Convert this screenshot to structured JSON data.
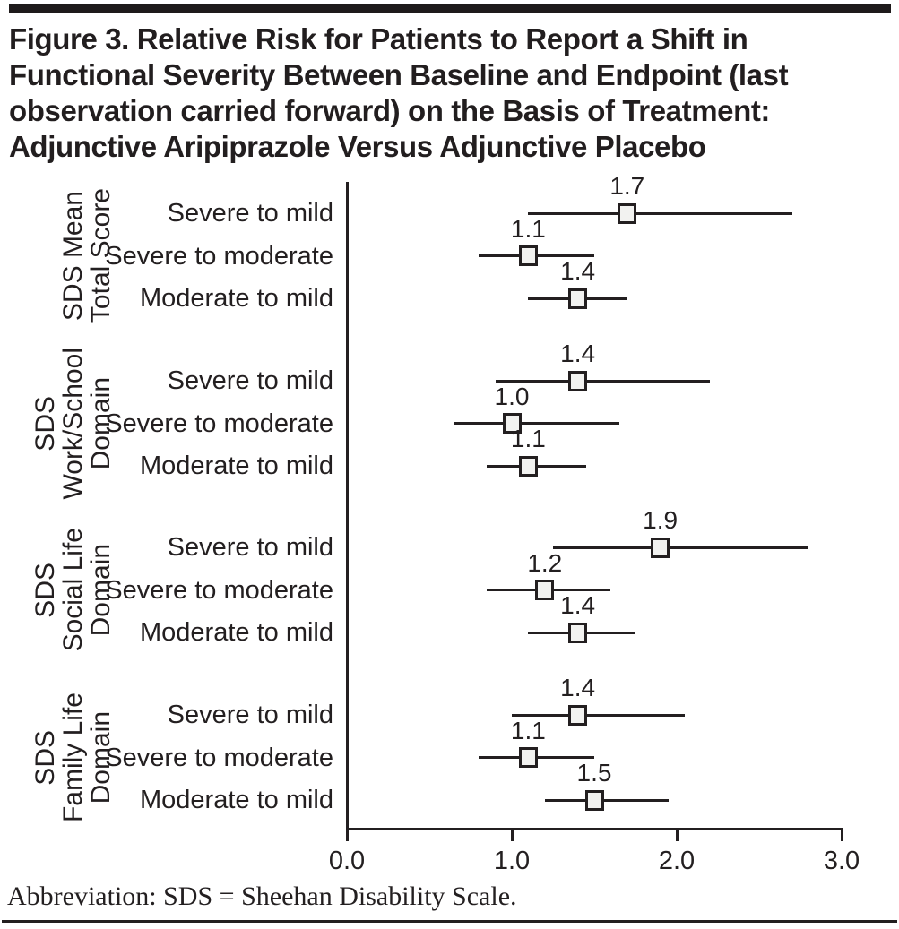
{
  "figure": {
    "title_lines": [
      "Figure 3. Relative Risk for Patients to Report a Shift in",
      "Functional Severity Between Baseline and Endpoint (last",
      "observation carried forward) on the Basis of Treatment:",
      "Adjunctive Aripiprazole Versus Adjunctive Placebo"
    ],
    "footnote": "Abbreviation: SDS = Sheehan Disability Scale."
  },
  "chart_data": {
    "type": "scatter",
    "subtype": "forest-plot",
    "xlabel": "",
    "ylabel": "",
    "xlim": [
      0.0,
      3.0
    ],
    "x_ticks": [
      "0.0",
      "1.0",
      "2.0",
      "3.0"
    ],
    "x_tick_values": [
      0.0,
      1.0,
      2.0,
      3.0
    ],
    "grid": false,
    "legend": false,
    "marker": "open-square",
    "groups": [
      {
        "label_lines": [
          "SDS Mean",
          "Total Score"
        ],
        "rows": [
          {
            "category": "Severe to mild",
            "rr": 1.7,
            "ci_low": 1.1,
            "ci_high": 2.7
          },
          {
            "category": "Severe to moderate",
            "rr": 1.1,
            "ci_low": 0.8,
            "ci_high": 1.5
          },
          {
            "category": "Moderate to mild",
            "rr": 1.4,
            "ci_low": 1.1,
            "ci_high": 1.7
          }
        ]
      },
      {
        "label_lines": [
          "SDS",
          "Work/School",
          "Domain"
        ],
        "rows": [
          {
            "category": "Severe to mild",
            "rr": 1.4,
            "ci_low": 0.9,
            "ci_high": 2.2
          },
          {
            "category": "Severe to moderate",
            "rr": 1.0,
            "ci_low": 0.65,
            "ci_high": 1.65
          },
          {
            "category": "Moderate to mild",
            "rr": 1.1,
            "ci_low": 0.85,
            "ci_high": 1.45
          }
        ]
      },
      {
        "label_lines": [
          "SDS",
          "Social Life",
          "Domain"
        ],
        "rows": [
          {
            "category": "Severe to mild",
            "rr": 1.9,
            "ci_low": 1.25,
            "ci_high": 2.8
          },
          {
            "category": "Severe to moderate",
            "rr": 1.2,
            "ci_low": 0.85,
            "ci_high": 1.6
          },
          {
            "category": "Moderate to mild",
            "rr": 1.4,
            "ci_low": 1.1,
            "ci_high": 1.75
          }
        ]
      },
      {
        "label_lines": [
          "SDS",
          "Family Life",
          "Domain"
        ],
        "rows": [
          {
            "category": "Severe to mild",
            "rr": 1.4,
            "ci_low": 1.0,
            "ci_high": 2.05
          },
          {
            "category": "Severe to moderate",
            "rr": 1.1,
            "ci_low": 0.8,
            "ci_high": 1.5
          },
          {
            "category": "Moderate to mild",
            "rr": 1.5,
            "ci_low": 1.2,
            "ci_high": 1.95
          }
        ]
      }
    ]
  },
  "colors": {
    "ink": "#231f20",
    "rule": "#1e1a1b",
    "marker_fill": "#f2f2f0",
    "background": "#ffffff"
  }
}
